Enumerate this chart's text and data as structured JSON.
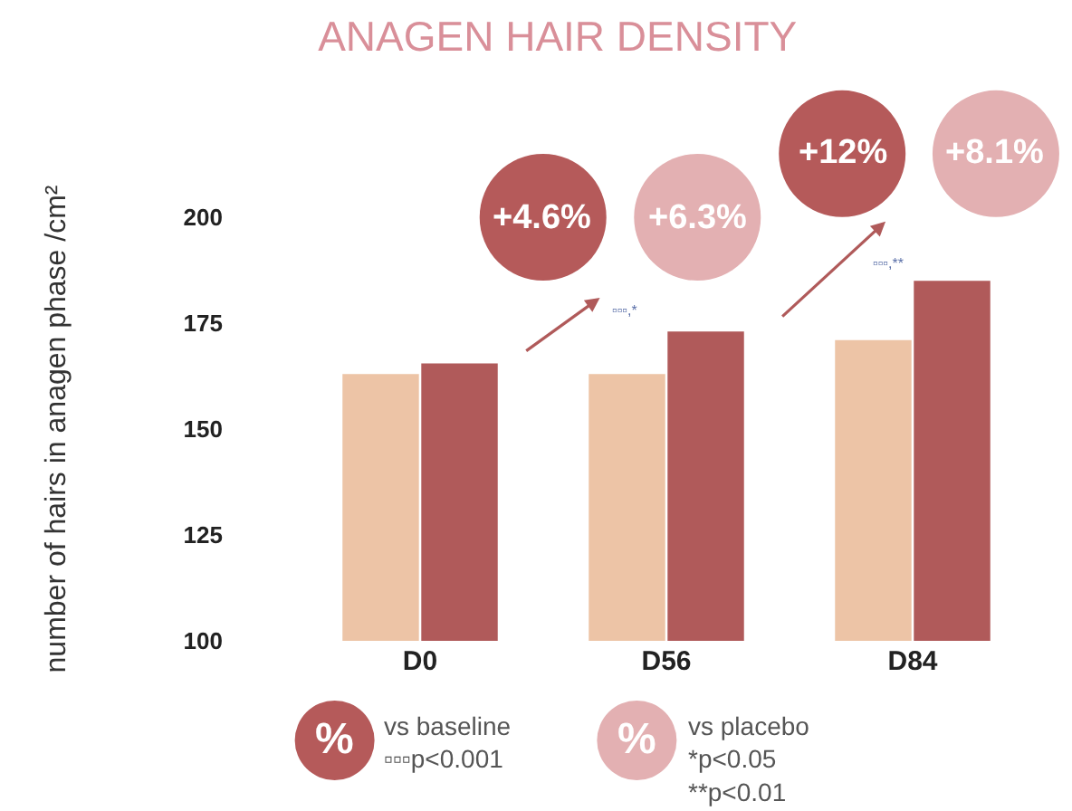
{
  "chart_data": {
    "type": "bar",
    "title": "ANAGEN HAIR DENSITY",
    "ylabel": "number of hairs in anagen phase /cm²",
    "categories": [
      "D0",
      "D56",
      "D84"
    ],
    "series": [
      {
        "color": "#edc4a6",
        "values": [
          163,
          163,
          171
        ]
      },
      {
        "color": "#b05a5a",
        "values": [
          165.5,
          173,
          185
        ]
      }
    ],
    "ylim": [
      100,
      200
    ],
    "yticks": [
      100,
      125,
      150,
      175,
      200
    ],
    "annotations": [
      "+4.6%",
      "+6.3%",
      "+12%",
      "+8.1%",
      "▫▫▫,*",
      "▫▫▫,**",
      "%",
      "vs baseline\n▫▫▫p<0.001",
      "%",
      "vs placebo\n*p<0.05\n**p<0.01"
    ]
  }
}
